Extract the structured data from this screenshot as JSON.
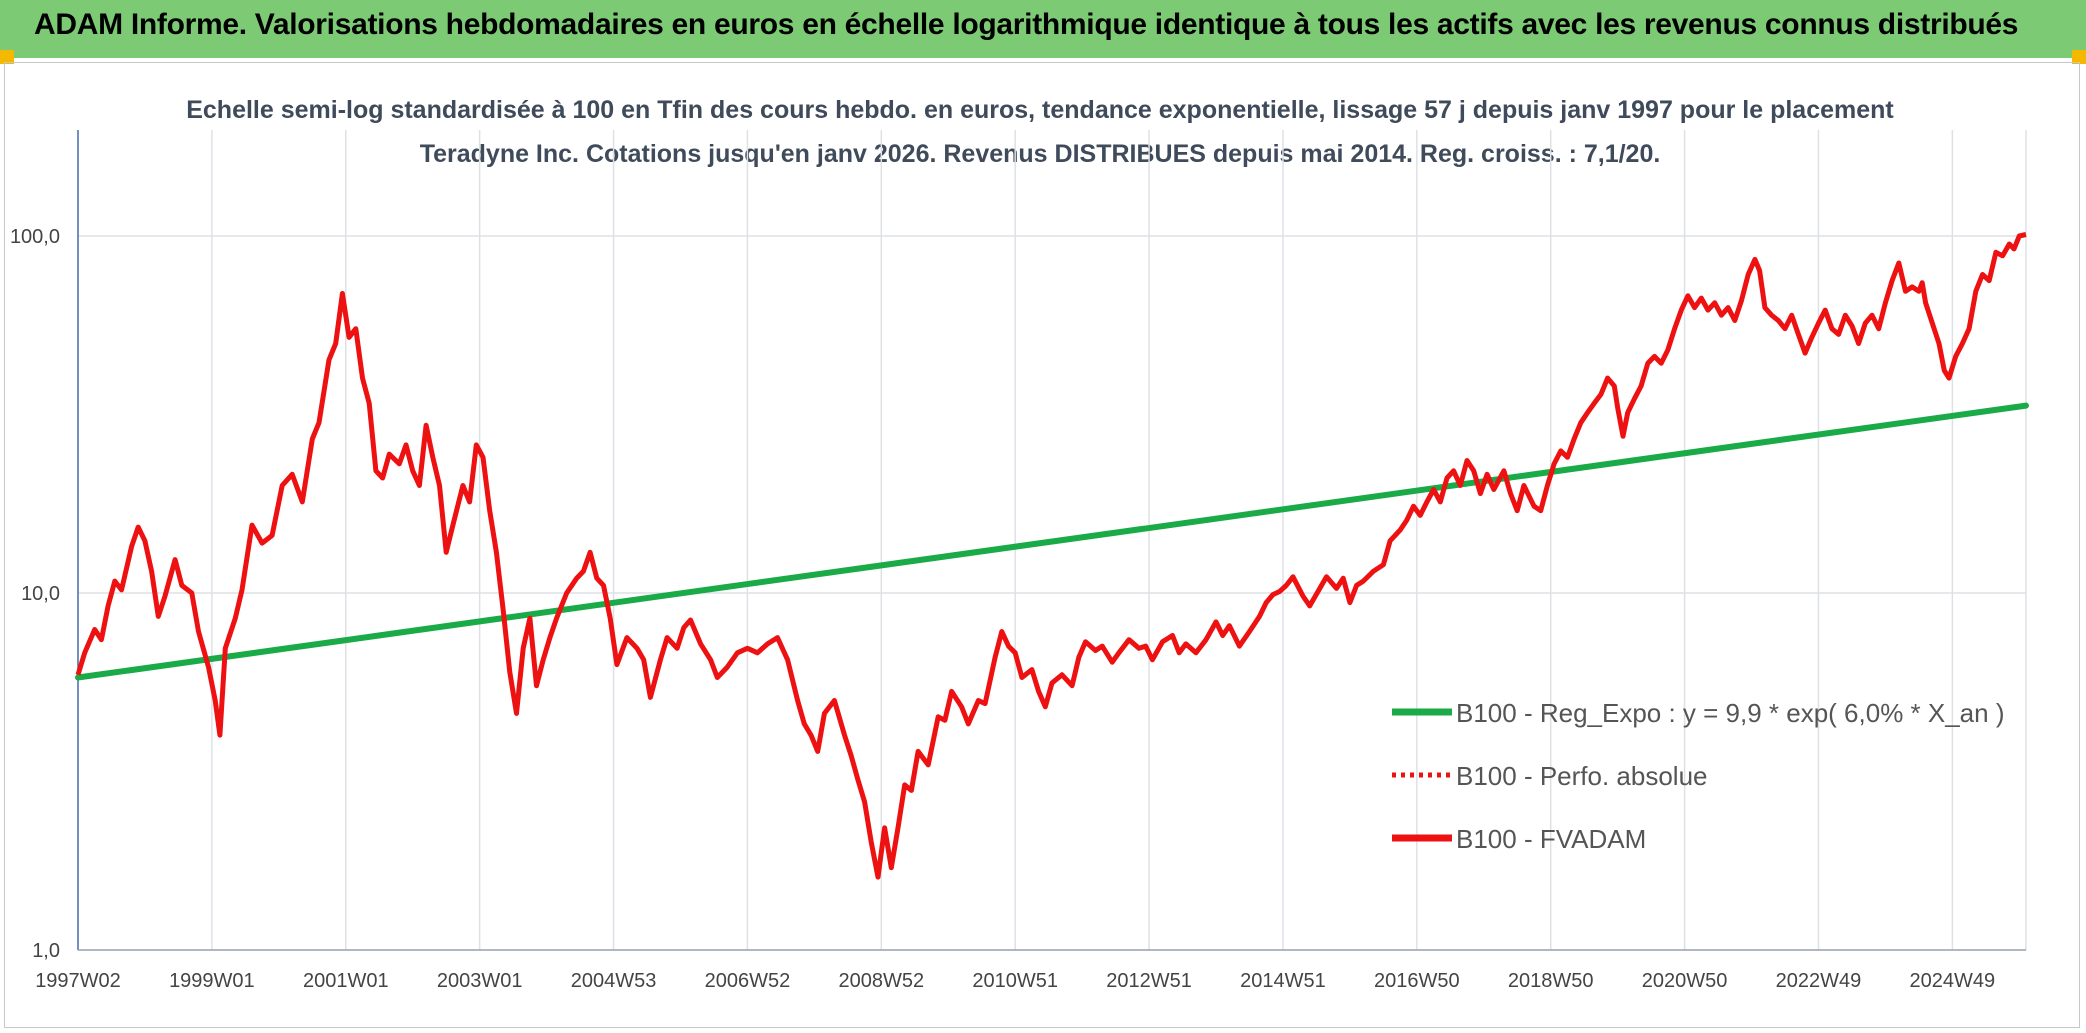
{
  "header": {
    "title": "ADAM Informe. Valorisations hebdomadaires en euros en échelle logarithmique identique à tous les actifs avec les revenus connus distribués"
  },
  "colors": {
    "banner": "#7ccb74",
    "corner_accent": "#f5b800",
    "series_trend": "#1aaa48",
    "series_price": "#ee1111"
  },
  "chart_data": {
    "type": "line",
    "title": "Echelle semi-log standardisée à 100 en Tfin des cours hebdo. en euros, tendance exponentielle, lissage 57 j depuis janv 1997 pour le placement Teradyne Inc. Cotations jusqu'en janv 2026. Revenus DISTRIBUES depuis mai 2014. Reg. croiss. : 7,1/20.",
    "y_scale": "log",
    "ylim": [
      1,
      100
    ],
    "y_ticks": [
      {
        "value": 1,
        "label": "1,0"
      },
      {
        "value": 10,
        "label": "10,0"
      },
      {
        "value": 100,
        "label": "100,0"
      }
    ],
    "xlim": [
      1997.0,
      2026.1
    ],
    "x_ticks": [
      {
        "value": 1997.0,
        "label": "1997W02"
      },
      {
        "value": 1999.0,
        "label": "1999W01"
      },
      {
        "value": 2001.0,
        "label": "2001W01"
      },
      {
        "value": 2003.0,
        "label": "2003W01"
      },
      {
        "value": 2005.0,
        "label": "2004W53"
      },
      {
        "value": 2007.0,
        "label": "2006W52"
      },
      {
        "value": 2009.0,
        "label": "2008W52"
      },
      {
        "value": 2011.0,
        "label": "2010W51"
      },
      {
        "value": 2013.0,
        "label": "2012W51"
      },
      {
        "value": 2015.0,
        "label": "2014W51"
      },
      {
        "value": 2017.0,
        "label": "2016W50"
      },
      {
        "value": 2019.0,
        "label": "2018W50"
      },
      {
        "value": 2021.0,
        "label": "2020W50"
      },
      {
        "value": 2023.0,
        "label": "2022W49"
      },
      {
        "value": 2025.0,
        "label": "2024W49"
      }
    ],
    "grid": "vertical",
    "legend_position": "right",
    "series": [
      {
        "name": "B100 - Reg_Expo : y = 9,9 * exp( 6,0% *  X_an )",
        "style": "solid",
        "color": "#1aaa48",
        "points": [
          [
            1997.0,
            5.8
          ],
          [
            2026.1,
            33.5
          ]
        ]
      },
      {
        "name": "B100 - Perfo. absolue",
        "style": "dotted",
        "color": "#ee1111",
        "points": []
      },
      {
        "name": "B100 - FVADAM",
        "style": "solid",
        "color": "#ee1111",
        "points": [
          [
            1997.0,
            5.9
          ],
          [
            1997.1,
            6.8
          ],
          [
            1997.25,
            7.9
          ],
          [
            1997.35,
            7.4
          ],
          [
            1997.45,
            9.2
          ],
          [
            1997.55,
            10.8
          ],
          [
            1997.65,
            10.2
          ],
          [
            1997.8,
            13.5
          ],
          [
            1997.9,
            15.3
          ],
          [
            1998.0,
            14.0
          ],
          [
            1998.1,
            11.5
          ],
          [
            1998.2,
            8.6
          ],
          [
            1998.3,
            9.8
          ],
          [
            1998.45,
            12.4
          ],
          [
            1998.55,
            10.5
          ],
          [
            1998.7,
            10.0
          ],
          [
            1998.8,
            7.8
          ],
          [
            1998.95,
            6.2
          ],
          [
            1999.05,
            5.0
          ],
          [
            1999.12,
            4.0
          ],
          [
            1999.2,
            7.0
          ],
          [
            1999.35,
            8.5
          ],
          [
            1999.45,
            10.2
          ],
          [
            1999.6,
            15.5
          ],
          [
            1999.75,
            13.8
          ],
          [
            1999.9,
            14.5
          ],
          [
            2000.05,
            20.0
          ],
          [
            2000.2,
            21.5
          ],
          [
            2000.35,
            18.0
          ],
          [
            2000.5,
            27.0
          ],
          [
            2000.6,
            30.0
          ],
          [
            2000.75,
            45.0
          ],
          [
            2000.85,
            50.0
          ],
          [
            2000.95,
            69.0
          ],
          [
            2001.05,
            52.0
          ],
          [
            2001.15,
            55.0
          ],
          [
            2001.25,
            40.0
          ],
          [
            2001.35,
            34.0
          ],
          [
            2001.45,
            22.0
          ],
          [
            2001.55,
            21.0
          ],
          [
            2001.65,
            24.5
          ],
          [
            2001.8,
            23.0
          ],
          [
            2001.9,
            26.0
          ],
          [
            2002.0,
            22.0
          ],
          [
            2002.1,
            20.0
          ],
          [
            2002.2,
            29.5
          ],
          [
            2002.3,
            24.0
          ],
          [
            2002.4,
            20.0
          ],
          [
            2002.5,
            13.0
          ],
          [
            2002.6,
            15.5
          ],
          [
            2002.75,
            20.0
          ],
          [
            2002.85,
            18.0
          ],
          [
            2002.95,
            26.0
          ],
          [
            2003.05,
            24.0
          ],
          [
            2003.15,
            17.0
          ],
          [
            2003.25,
            13.0
          ],
          [
            2003.35,
            9.0
          ],
          [
            2003.45,
            6.0
          ],
          [
            2003.55,
            4.6
          ],
          [
            2003.65,
            7.0
          ],
          [
            2003.75,
            8.5
          ],
          [
            2003.85,
            5.5
          ],
          [
            2003.95,
            6.5
          ],
          [
            2004.05,
            7.5
          ],
          [
            2004.15,
            8.5
          ],
          [
            2004.3,
            10.0
          ],
          [
            2004.45,
            11.0
          ],
          [
            2004.55,
            11.5
          ],
          [
            2004.65,
            13.0
          ],
          [
            2004.75,
            11.0
          ],
          [
            2004.85,
            10.5
          ],
          [
            2004.95,
            8.5
          ],
          [
            2005.05,
            6.3
          ],
          [
            2005.2,
            7.5
          ],
          [
            2005.35,
            7.0
          ],
          [
            2005.45,
            6.5
          ],
          [
            2005.55,
            5.1
          ],
          [
            2005.7,
            6.5
          ],
          [
            2005.8,
            7.5
          ],
          [
            2005.95,
            7.0
          ],
          [
            2006.05,
            8.0
          ],
          [
            2006.15,
            8.4
          ],
          [
            2006.3,
            7.2
          ],
          [
            2006.45,
            6.5
          ],
          [
            2006.55,
            5.8
          ],
          [
            2006.7,
            6.2
          ],
          [
            2006.85,
            6.8
          ],
          [
            2007.0,
            7.0
          ],
          [
            2007.15,
            6.8
          ],
          [
            2007.3,
            7.2
          ],
          [
            2007.45,
            7.5
          ],
          [
            2007.6,
            6.5
          ],
          [
            2007.75,
            5.0
          ],
          [
            2007.85,
            4.3
          ],
          [
            2007.95,
            4.0
          ],
          [
            2008.05,
            3.6
          ],
          [
            2008.15,
            4.6
          ],
          [
            2008.3,
            5.0
          ],
          [
            2008.45,
            4.0
          ],
          [
            2008.55,
            3.5
          ],
          [
            2008.65,
            3.0
          ],
          [
            2008.75,
            2.6
          ],
          [
            2008.85,
            2.0
          ],
          [
            2008.95,
            1.6
          ],
          [
            2009.05,
            2.2
          ],
          [
            2009.15,
            1.7
          ],
          [
            2009.25,
            2.2
          ],
          [
            2009.35,
            2.9
          ],
          [
            2009.45,
            2.8
          ],
          [
            2009.55,
            3.6
          ],
          [
            2009.7,
            3.3
          ],
          [
            2009.85,
            4.5
          ],
          [
            2009.95,
            4.4
          ],
          [
            2010.05,
            5.3
          ],
          [
            2010.2,
            4.8
          ],
          [
            2010.3,
            4.3
          ],
          [
            2010.45,
            5.0
          ],
          [
            2010.55,
            4.9
          ],
          [
            2010.7,
            6.6
          ],
          [
            2010.8,
            7.8
          ],
          [
            2010.9,
            7.1
          ],
          [
            2011.0,
            6.8
          ],
          [
            2011.1,
            5.8
          ],
          [
            2011.25,
            6.1
          ],
          [
            2011.35,
            5.3
          ],
          [
            2011.45,
            4.8
          ],
          [
            2011.55,
            5.6
          ],
          [
            2011.7,
            5.9
          ],
          [
            2011.85,
            5.5
          ],
          [
            2011.95,
            6.6
          ],
          [
            2012.05,
            7.3
          ],
          [
            2012.2,
            6.9
          ],
          [
            2012.3,
            7.1
          ],
          [
            2012.45,
            6.4
          ],
          [
            2012.55,
            6.8
          ],
          [
            2012.7,
            7.4
          ],
          [
            2012.85,
            7.0
          ],
          [
            2012.95,
            7.1
          ],
          [
            2013.05,
            6.5
          ],
          [
            2013.2,
            7.3
          ],
          [
            2013.35,
            7.6
          ],
          [
            2013.45,
            6.8
          ],
          [
            2013.55,
            7.2
          ],
          [
            2013.7,
            6.8
          ],
          [
            2013.85,
            7.4
          ],
          [
            2014.0,
            8.3
          ],
          [
            2014.1,
            7.6
          ],
          [
            2014.2,
            8.1
          ],
          [
            2014.35,
            7.1
          ],
          [
            2014.5,
            7.8
          ],
          [
            2014.65,
            8.6
          ],
          [
            2014.75,
            9.4
          ],
          [
            2014.85,
            9.9
          ],
          [
            2014.95,
            10.1
          ],
          [
            2015.05,
            10.5
          ],
          [
            2015.15,
            11.1
          ],
          [
            2015.3,
            9.8
          ],
          [
            2015.4,
            9.2
          ],
          [
            2015.55,
            10.3
          ],
          [
            2015.65,
            11.1
          ],
          [
            2015.8,
            10.3
          ],
          [
            2015.9,
            11.0
          ],
          [
            2016.0,
            9.4
          ],
          [
            2016.1,
            10.5
          ],
          [
            2016.2,
            10.8
          ],
          [
            2016.35,
            11.5
          ],
          [
            2016.5,
            12.0
          ],
          [
            2016.6,
            14.0
          ],
          [
            2016.75,
            15.0
          ],
          [
            2016.85,
            16.0
          ],
          [
            2016.95,
            17.5
          ],
          [
            2017.05,
            16.5
          ],
          [
            2017.15,
            18.0
          ],
          [
            2017.25,
            19.5
          ],
          [
            2017.35,
            18.0
          ],
          [
            2017.45,
            21.0
          ],
          [
            2017.55,
            22.0
          ],
          [
            2017.65,
            20.0
          ],
          [
            2017.75,
            23.5
          ],
          [
            2017.85,
            22.0
          ],
          [
            2017.95,
            19.0
          ],
          [
            2018.05,
            21.5
          ],
          [
            2018.15,
            19.5
          ],
          [
            2018.3,
            22.0
          ],
          [
            2018.4,
            19.0
          ],
          [
            2018.5,
            17.0
          ],
          [
            2018.6,
            20.0
          ],
          [
            2018.75,
            17.5
          ],
          [
            2018.85,
            17.0
          ],
          [
            2018.95,
            20.0
          ],
          [
            2019.05,
            23.0
          ],
          [
            2019.15,
            25.0
          ],
          [
            2019.25,
            24.0
          ],
          [
            2019.35,
            27.0
          ],
          [
            2019.45,
            30.0
          ],
          [
            2019.55,
            32.0
          ],
          [
            2019.65,
            34.0
          ],
          [
            2019.75,
            36.0
          ],
          [
            2019.85,
            40.0
          ],
          [
            2019.95,
            38.0
          ],
          [
            2020.0,
            33.0
          ],
          [
            2020.08,
            27.5
          ],
          [
            2020.15,
            32.0
          ],
          [
            2020.25,
            35.0
          ],
          [
            2020.35,
            38.0
          ],
          [
            2020.45,
            44.0
          ],
          [
            2020.55,
            46.0
          ],
          [
            2020.65,
            44.0
          ],
          [
            2020.75,
            48.0
          ],
          [
            2020.85,
            55.0
          ],
          [
            2020.95,
            62.0
          ],
          [
            2021.05,
            68.0
          ],
          [
            2021.15,
            63.0
          ],
          [
            2021.25,
            67.0
          ],
          [
            2021.35,
            62.0
          ],
          [
            2021.45,
            65.0
          ],
          [
            2021.55,
            60.0
          ],
          [
            2021.65,
            63.0
          ],
          [
            2021.75,
            58.0
          ],
          [
            2021.85,
            66.0
          ],
          [
            2021.95,
            78.0
          ],
          [
            2022.05,
            86.0
          ],
          [
            2022.12,
            80.0
          ],
          [
            2022.2,
            63.0
          ],
          [
            2022.3,
            60.0
          ],
          [
            2022.4,
            58.0
          ],
          [
            2022.5,
            55.0
          ],
          [
            2022.6,
            60.0
          ],
          [
            2022.7,
            53.0
          ],
          [
            2022.8,
            47.0
          ],
          [
            2022.9,
            52.0
          ],
          [
            2023.0,
            57.0
          ],
          [
            2023.1,
            62.0
          ],
          [
            2023.2,
            55.0
          ],
          [
            2023.3,
            53.0
          ],
          [
            2023.4,
            60.0
          ],
          [
            2023.5,
            56.0
          ],
          [
            2023.6,
            50.0
          ],
          [
            2023.7,
            57.0
          ],
          [
            2023.8,
            60.0
          ],
          [
            2023.9,
            55.0
          ],
          [
            2024.0,
            65.0
          ],
          [
            2024.1,
            75.0
          ],
          [
            2024.2,
            84.0
          ],
          [
            2024.3,
            70.0
          ],
          [
            2024.4,
            72.0
          ],
          [
            2024.5,
            70.0
          ],
          [
            2024.55,
            74.0
          ],
          [
            2024.6,
            65.0
          ],
          [
            2024.7,
            57.0
          ],
          [
            2024.8,
            50.0
          ],
          [
            2024.88,
            42.0
          ],
          [
            2024.95,
            40.0
          ],
          [
            2025.05,
            46.0
          ],
          [
            2025.15,
            50.0
          ],
          [
            2025.25,
            55.0
          ],
          [
            2025.35,
            70.0
          ],
          [
            2025.45,
            78.0
          ],
          [
            2025.55,
            75.0
          ],
          [
            2025.65,
            90.0
          ],
          [
            2025.75,
            88.0
          ],
          [
            2025.85,
            95.0
          ],
          [
            2025.92,
            92.0
          ],
          [
            2026.0,
            100.0
          ],
          [
            2026.1,
            101.0
          ]
        ]
      }
    ]
  }
}
